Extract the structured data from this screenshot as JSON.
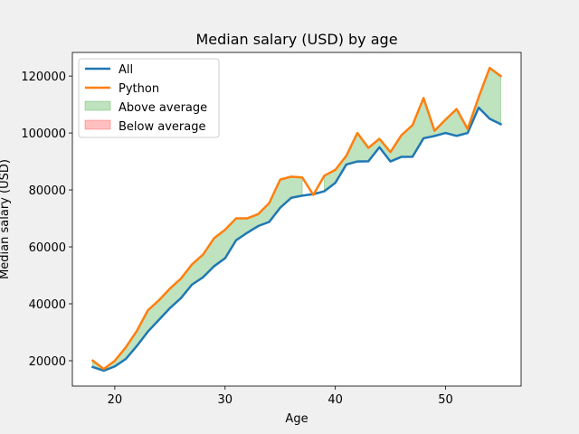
{
  "chart_data": {
    "type": "line",
    "title": "Median salary (USD) by age",
    "xlabel": "Age",
    "ylabel": "Median salary (USD)",
    "xlim": [
      16.15,
      56.85
    ],
    "ylim": [
      11100,
      128300
    ],
    "xticks": [
      20,
      30,
      40,
      50
    ],
    "yticks": [
      20000,
      40000,
      60000,
      80000,
      100000,
      120000
    ],
    "legend_position": "upper left",
    "x": [
      18,
      19,
      20,
      21,
      22,
      23,
      24,
      25,
      26,
      27,
      28,
      29,
      30,
      31,
      32,
      33,
      34,
      35,
      36,
      37,
      38,
      39,
      40,
      41,
      42,
      43,
      44,
      45,
      46,
      47,
      48,
      49,
      50,
      51,
      52,
      53,
      54,
      55
    ],
    "series": [
      {
        "name": "All",
        "color": "#1f77b4",
        "values": [
          17784,
          16500,
          18012,
          20628,
          25206,
          30252,
          34368,
          38496,
          42000,
          46752,
          49320,
          53200,
          56000,
          62316,
          64928,
          67317,
          68748,
          73752,
          77232,
          78000,
          78508,
          79536,
          82488,
          88935,
          90000,
          90056,
          95000,
          90000,
          91633,
          91660,
          98150,
          98964,
          100000,
          98988,
          100000,
          108923,
          105000,
          103117
        ]
      },
      {
        "name": "Python",
        "color": "#ff7f0e",
        "values": [
          20046,
          17100,
          20000,
          24744,
          30500,
          37732,
          41247,
          45372,
          48876,
          53850,
          57287,
          63016,
          65998,
          70003,
          70000,
          71496,
          75370,
          83640,
          84666,
          84392,
          78254,
          85000,
          87038,
          91991,
          100000,
          94796,
          97962,
          93302,
          99240,
          102736,
          112285,
          100771,
          104708,
          108423,
          101407,
          112542,
          122870,
          120000
        ]
      }
    ],
    "fills": [
      {
        "name": "Above average",
        "color": "#2ca02c",
        "alpha": 0.3
      },
      {
        "name": "Below average",
        "color": "#ff0000",
        "alpha": 0.25
      }
    ]
  }
}
